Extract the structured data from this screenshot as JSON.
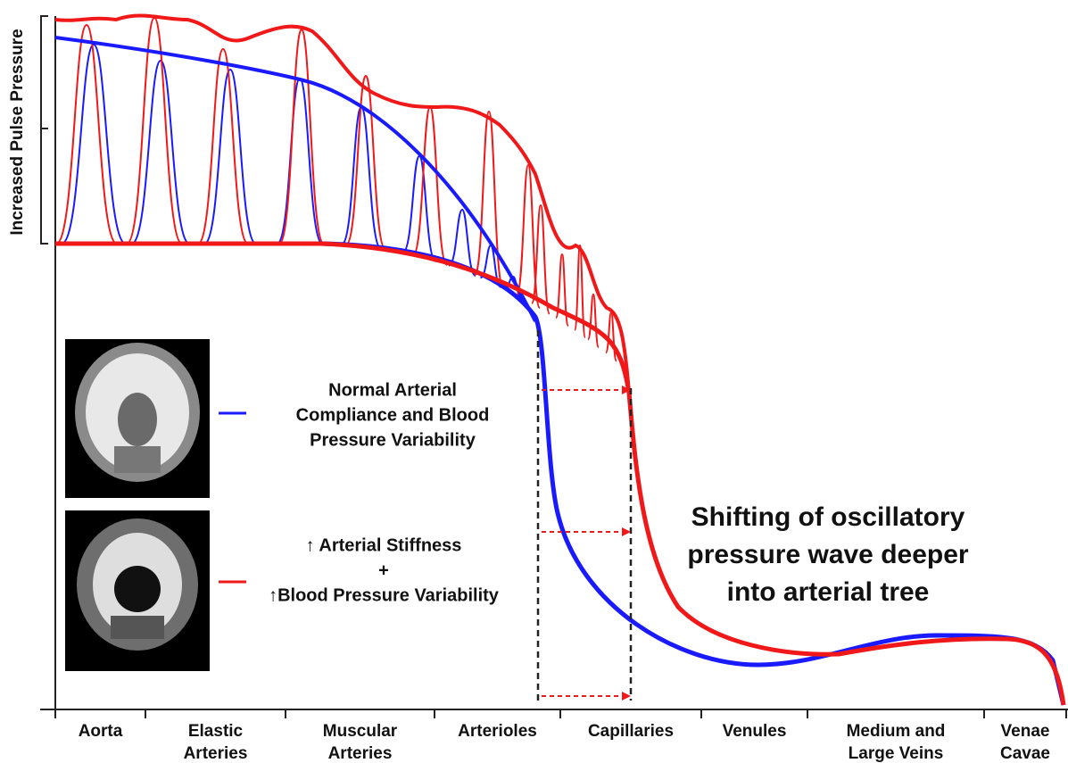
{
  "axis_label": "Increased Pulse Pressure",
  "segments": [
    {
      "lines": [
        "Aorta"
      ]
    },
    {
      "lines": [
        "Elastic",
        "Arteries"
      ]
    },
    {
      "lines": [
        "Muscular",
        "Arteries"
      ]
    },
    {
      "lines": [
        "Arterioles"
      ]
    },
    {
      "lines": [
        "Capillaries"
      ]
    },
    {
      "lines": [
        "Venules"
      ]
    },
    {
      "lines": [
        "Medium and",
        "Large Veins"
      ]
    },
    {
      "lines": [
        "Venae",
        "Cavae"
      ]
    }
  ],
  "legend": [
    {
      "lines": [
        "Normal Arterial",
        "Compliance and Blood",
        "Pressure Variability"
      ]
    },
    {
      "lines": [
        "↑ Arterial Stiffness",
        "+",
        "↑Blood Pressure Variability"
      ]
    }
  ],
  "annotation": {
    "lines": [
      "Shifting of oscillatory",
      "pressure wave deeper",
      "into arterial tree"
    ]
  }
}
